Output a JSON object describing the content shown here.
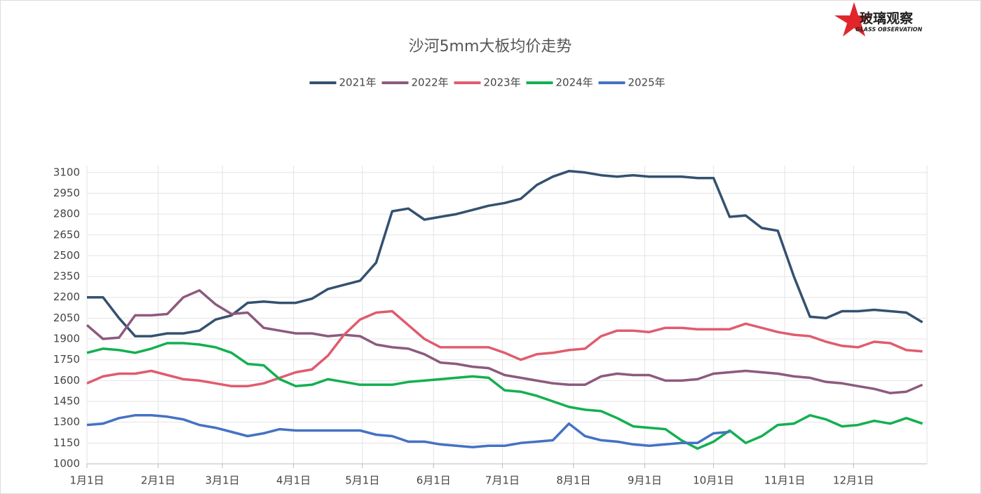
{
  "logo": {
    "name": "玻璃观察",
    "subtitle": "GLASS OBSERVATION"
  },
  "chart_data": {
    "type": "line",
    "title": "沙河5mm大板均价走势",
    "x": [
      1,
      8,
      15,
      22,
      29,
      36,
      43,
      50,
      57,
      64,
      71,
      78,
      85,
      92,
      99,
      106,
      113,
      120,
      127,
      134,
      141,
      148,
      155,
      162,
      169,
      176,
      183,
      190,
      197,
      204,
      211,
      218,
      225,
      232,
      239,
      246,
      253,
      260,
      267,
      274,
      281,
      288,
      295,
      302,
      309,
      316,
      323,
      330,
      337,
      344,
      351,
      358,
      365
    ],
    "xlim": [
      1,
      367
    ],
    "xticks": [
      {
        "value": 1,
        "label": "1月1日"
      },
      {
        "value": 32,
        "label": "2月1日"
      },
      {
        "value": 60,
        "label": "3月1日"
      },
      {
        "value": 91,
        "label": "4月1日"
      },
      {
        "value": 121,
        "label": "5月1日"
      },
      {
        "value": 152,
        "label": "6月1日"
      },
      {
        "value": 182,
        "label": "7月1日"
      },
      {
        "value": 213,
        "label": "8月1日"
      },
      {
        "value": 244,
        "label": "9月1日"
      },
      {
        "value": 274,
        "label": "10月1日"
      },
      {
        "value": 305,
        "label": "11月1日"
      },
      {
        "value": 335,
        "label": "12月1日"
      }
    ],
    "ylim": [
      1000,
      3200
    ],
    "yticks": [
      1000,
      1150,
      1300,
      1450,
      1600,
      1750,
      1900,
      2050,
      2200,
      2350,
      2500,
      2650,
      2800,
      2950,
      3100
    ],
    "grid": true,
    "series": [
      {
        "name": "2021年",
        "color": "#34516f",
        "values": [
          2200,
          2200,
          2050,
          1920,
          1920,
          1940,
          1940,
          1960,
          2040,
          2070,
          2160,
          2170,
          2160,
          2160,
          2190,
          2260,
          2290,
          2320,
          2450,
          2820,
          2840,
          2760,
          2780,
          2800,
          2830,
          2860,
          2880,
          2910,
          3010,
          3070,
          3110,
          3100,
          3080,
          3070,
          3080,
          3070,
          3070,
          3070,
          3060,
          3060,
          2780,
          2790,
          2700,
          2680,
          2350,
          2060,
          2050,
          2100,
          2100,
          2110,
          2100,
          2090,
          2020
        ]
      },
      {
        "name": "2022年",
        "color": "#8c5a7e",
        "values": [
          2000,
          1900,
          1910,
          2070,
          2070,
          2080,
          2200,
          2250,
          2150,
          2080,
          2090,
          1980,
          1960,
          1940,
          1940,
          1920,
          1930,
          1920,
          1860,
          1840,
          1830,
          1790,
          1730,
          1720,
          1700,
          1690,
          1640,
          1620,
          1600,
          1580,
          1570,
          1570,
          1630,
          1650,
          1640,
          1640,
          1600,
          1600,
          1610,
          1650,
          1660,
          1670,
          1660,
          1650,
          1630,
          1620,
          1590,
          1580,
          1560,
          1540,
          1510,
          1520,
          1570
        ]
      },
      {
        "name": "2023年",
        "color": "#e05c6e",
        "values": [
          1580,
          1630,
          1650,
          1650,
          1670,
          1640,
          1610,
          1600,
          1580,
          1560,
          1560,
          1580,
          1620,
          1660,
          1680,
          1780,
          1930,
          2040,
          2090,
          2100,
          2000,
          1900,
          1840,
          1840,
          1840,
          1840,
          1800,
          1750,
          1790,
          1800,
          1820,
          1830,
          1920,
          1960,
          1960,
          1950,
          1980,
          1980,
          1970,
          1970,
          1970,
          2010,
          1980,
          1950,
          1930,
          1920,
          1880,
          1850,
          1840,
          1880,
          1870,
          1820,
          1810
        ]
      },
      {
        "name": "2024年",
        "color": "#13b050",
        "values": [
          1800,
          1830,
          1820,
          1800,
          1830,
          1870,
          1870,
          1860,
          1840,
          1800,
          1720,
          1710,
          1610,
          1560,
          1570,
          1610,
          1590,
          1570,
          1570,
          1570,
          1590,
          1600,
          1610,
          1620,
          1630,
          1620,
          1530,
          1520,
          1490,
          1450,
          1410,
          1390,
          1380,
          1330,
          1270,
          1260,
          1250,
          1170,
          1110,
          1160,
          1240,
          1150,
          1200,
          1280,
          1290,
          1350,
          1320,
          1270,
          1280,
          1310,
          1290,
          1330,
          1290
        ]
      },
      {
        "name": "2025年",
        "color": "#4472c4",
        "values": [
          1280,
          1290,
          1330,
          1350,
          1350,
          1340,
          1320,
          1280,
          1260,
          1230,
          1200,
          1220,
          1250,
          1240,
          1240,
          1240,
          1240,
          1240,
          1210,
          1200,
          1160,
          1160,
          1140,
          1130,
          1120,
          1130,
          1130,
          1150,
          1160,
          1170,
          1290,
          1200,
          1170,
          1160,
          1140,
          1130,
          1140,
          1150,
          1150,
          1220,
          1230,
          null,
          null,
          null,
          null,
          null,
          null,
          null,
          null,
          null,
          null,
          null,
          null
        ]
      }
    ]
  }
}
